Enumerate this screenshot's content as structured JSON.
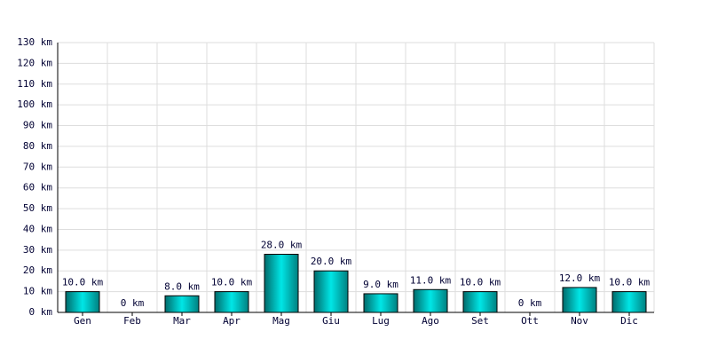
{
  "chart_data": {
    "type": "bar",
    "categories": [
      "Gen",
      "Feb",
      "Mar",
      "Apr",
      "Mag",
      "Giu",
      "Lug",
      "Ago",
      "Set",
      "Ott",
      "Nov",
      "Dic"
    ],
    "values": [
      10,
      0,
      8,
      10,
      28,
      20,
      9,
      11,
      10,
      0,
      12,
      10
    ],
    "value_labels": [
      "10.0 km",
      "0 km",
      "8.0 km",
      "10.0 km",
      "28.0 km",
      "20.0 km",
      "9.0 km",
      "11.0 km",
      "10.0 km",
      "0 km",
      "12.0 km",
      "10.0 km"
    ],
    "color": "#00e6e6",
    "ylim": [
      0,
      130
    ],
    "yticks": [
      {
        "value": 0,
        "label": "0 km"
      },
      {
        "value": 10,
        "label": "10 km"
      },
      {
        "value": 20,
        "label": "20 km"
      },
      {
        "value": 30,
        "label": "30 km"
      },
      {
        "value": 40,
        "label": "40 km"
      },
      {
        "value": 50,
        "label": "50 km"
      },
      {
        "value": 60,
        "label": "60 km"
      },
      {
        "value": 70,
        "label": "70 km"
      },
      {
        "value": 80,
        "label": "80 km"
      },
      {
        "value": 90,
        "label": "90 km"
      },
      {
        "value": 100,
        "label": "100 km"
      },
      {
        "value": 110,
        "label": "110 km"
      },
      {
        "value": 120,
        "label": "120 km"
      },
      {
        "value": 130,
        "label": "130 km"
      }
    ],
    "grid": true
  }
}
